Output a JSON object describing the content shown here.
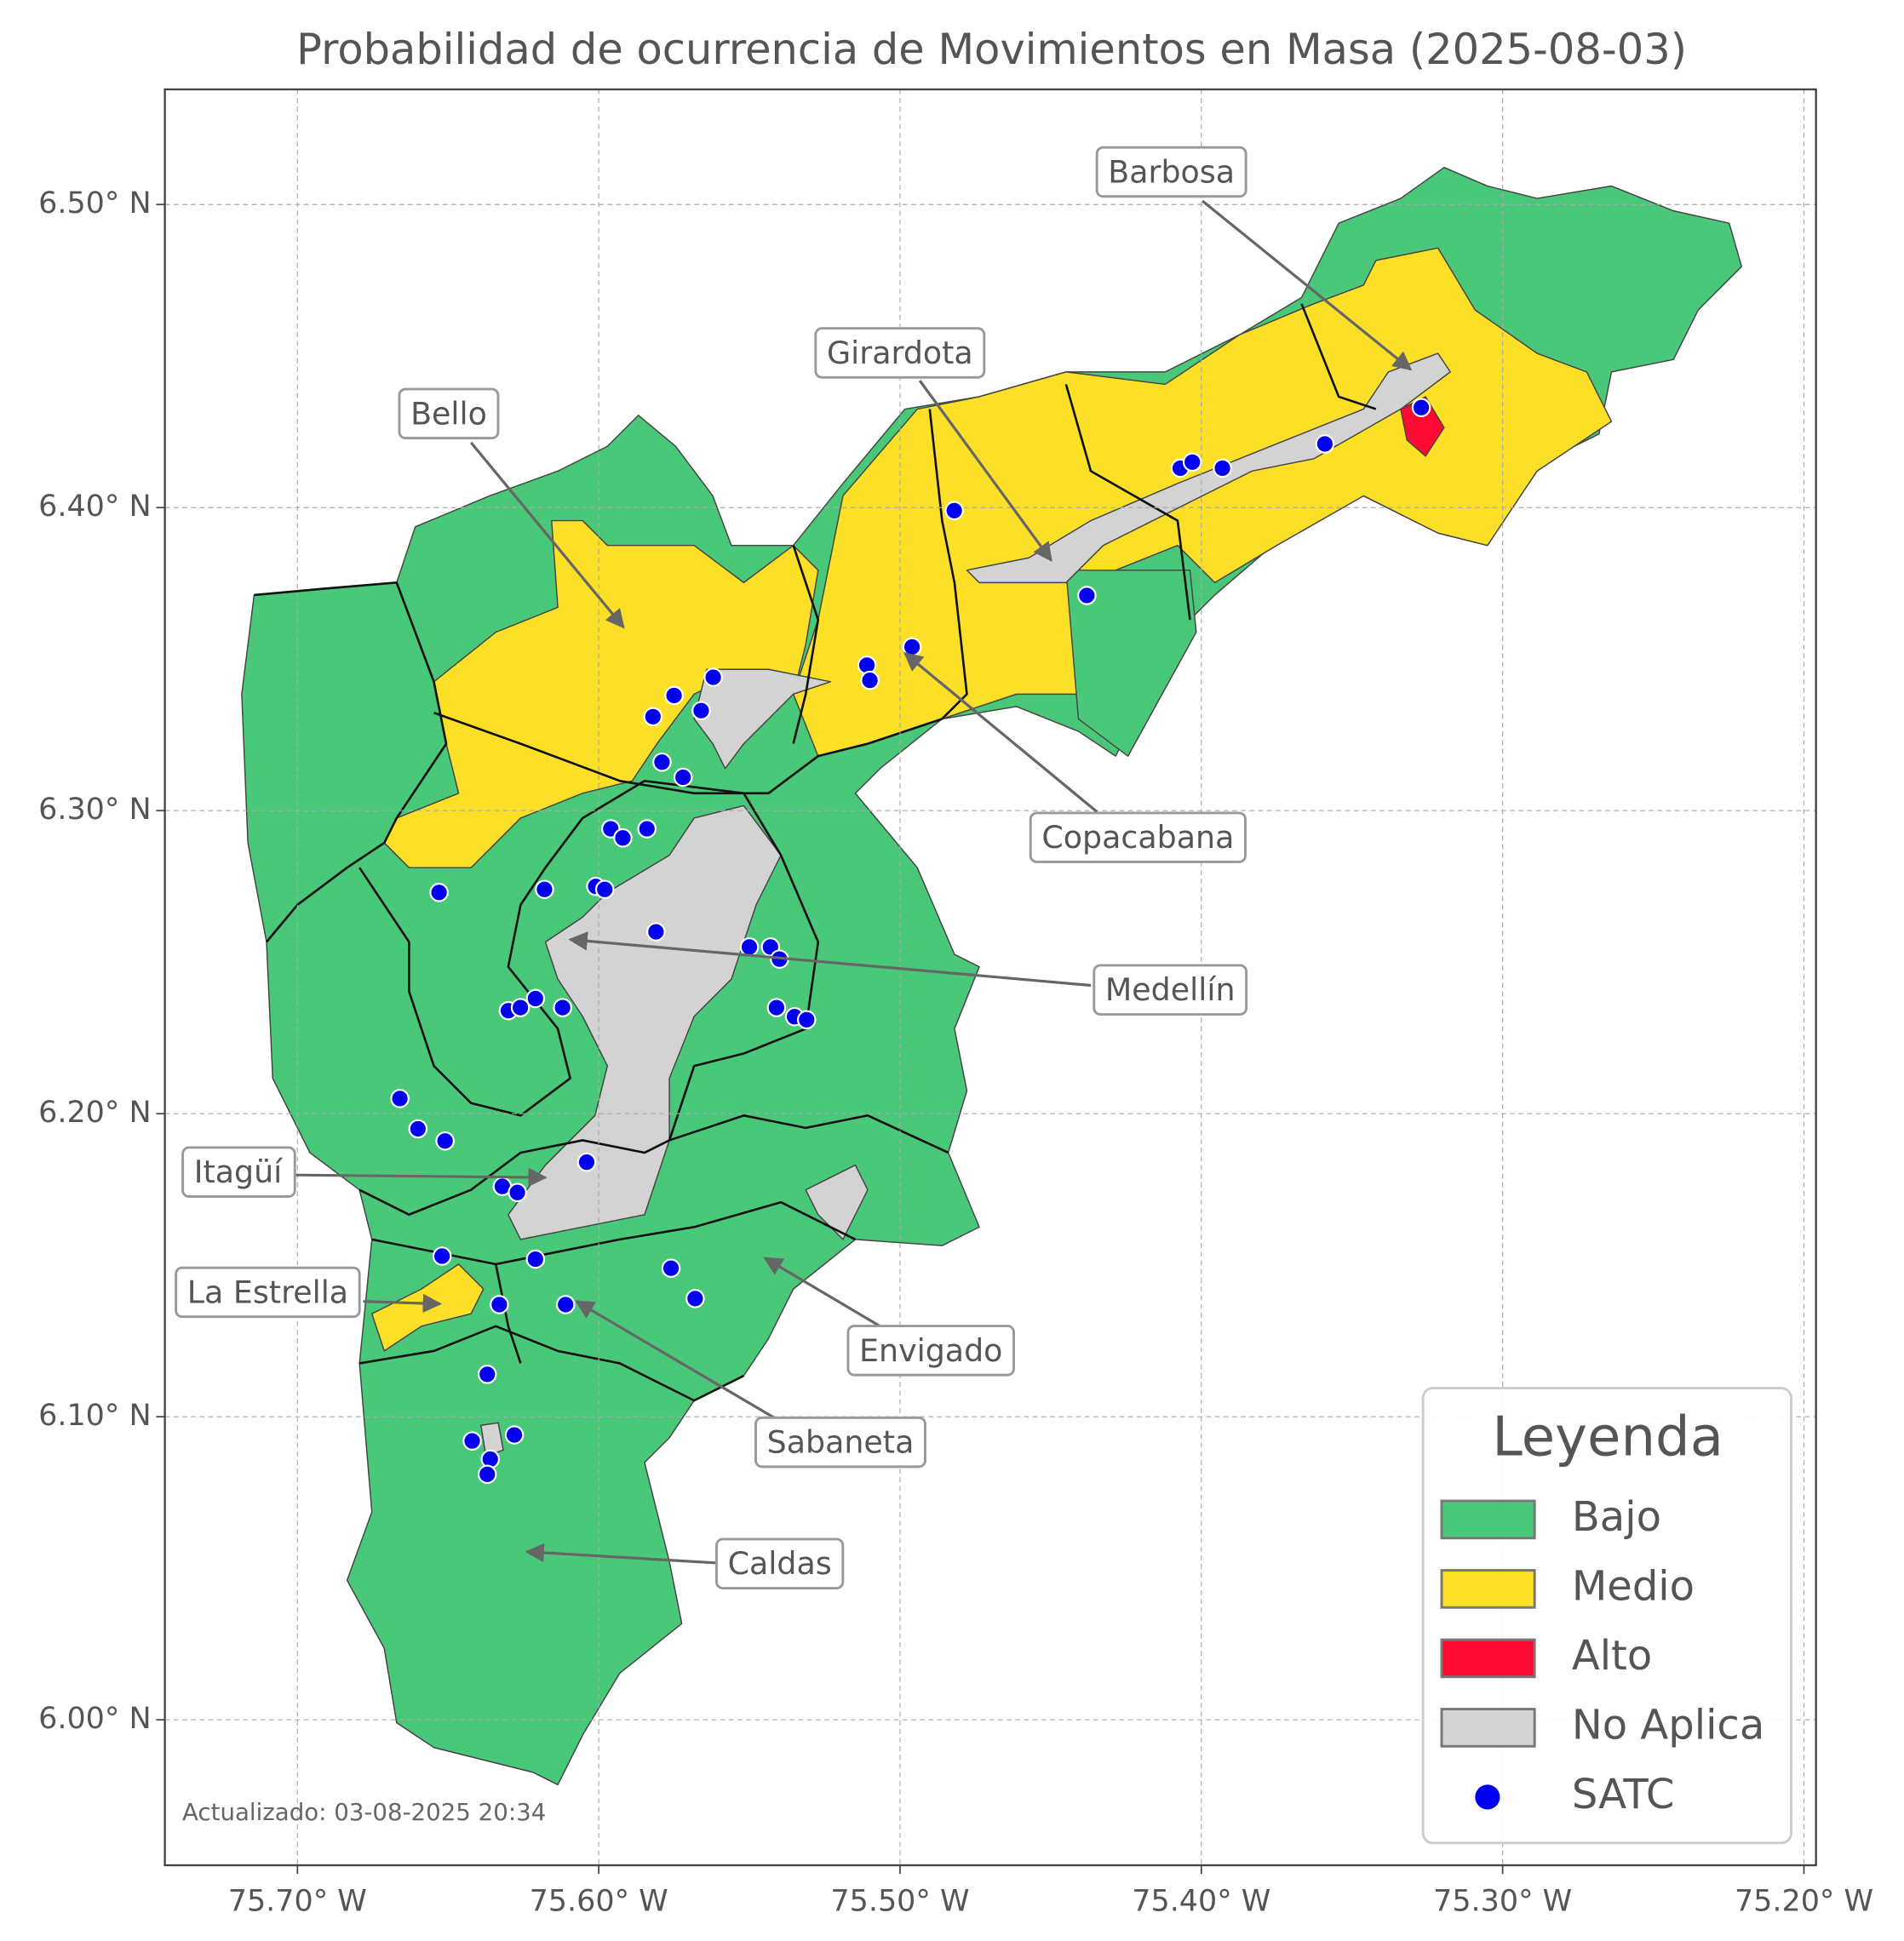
{
  "chart_data": {
    "type": "map",
    "title": "Probabilidad de ocurrencia de Movimientos en Masa (2025-08-03)",
    "xlim": [
      -75.744,
      -75.196
    ],
    "ylim": [
      5.952,
      6.538
    ],
    "xticks": [
      {
        "value": -75.7,
        "label": "75.70° W"
      },
      {
        "value": -75.6,
        "label": "75.60° W"
      },
      {
        "value": -75.5,
        "label": "75.50° W"
      },
      {
        "value": -75.4,
        "label": "75.40° W"
      },
      {
        "value": -75.3,
        "label": "75.30° W"
      },
      {
        "value": -75.2,
        "label": "75.20° W"
      }
    ],
    "yticks": [
      {
        "value": 6.0,
        "label": "6.00° N"
      },
      {
        "value": 6.1,
        "label": "6.10° N"
      },
      {
        "value": 6.2,
        "label": "6.20° N"
      },
      {
        "value": 6.3,
        "label": "6.30° N"
      },
      {
        "value": 6.4,
        "label": "6.40° N"
      },
      {
        "value": 6.5,
        "label": "6.50° N"
      }
    ],
    "grid": true,
    "legend": {
      "title": "Leyenda",
      "corner": "lower right",
      "entries": [
        {
          "name": "Bajo",
          "color": "#48c878"
        },
        {
          "name": "Medio",
          "color": "#fce028"
        },
        {
          "name": "Alto",
          "color": "#ff0a32"
        },
        {
          "name": "No Aplica",
          "color": "#d3d3d3"
        }
      ]
    },
    "points": {
      "name": "SATC",
      "color": "#0000ee",
      "lon": [
        -75.327,
        -75.359,
        -75.407,
        -75.403,
        -75.393,
        -75.482,
        -75.438,
        -75.496,
        -75.511,
        -75.51,
        -75.562,
        -75.575,
        -75.566,
        -75.582,
        -75.579,
        -75.572,
        -75.596,
        -75.592,
        -75.584,
        -75.653,
        -75.618,
        -75.601,
        -75.598,
        -75.581,
        -75.55,
        -75.543,
        -75.54,
        -75.541,
        -75.535,
        -75.531,
        -75.63,
        -75.626,
        -75.621,
        -75.612,
        -75.666,
        -75.66,
        -75.651,
        -75.604,
        -75.632,
        -75.627,
        -75.652,
        -75.621,
        -75.576,
        -75.568,
        -75.633,
        -75.611,
        -75.637,
        -75.642,
        -75.628,
        -75.636,
        -75.637
      ],
      "lat": [
        6.433,
        6.421,
        6.413,
        6.415,
        6.413,
        6.399,
        6.371,
        6.354,
        6.348,
        6.343,
        6.344,
        6.338,
        6.333,
        6.331,
        6.316,
        6.311,
        6.294,
        6.291,
        6.294,
        6.273,
        6.274,
        6.275,
        6.274,
        6.26,
        6.255,
        6.255,
        6.251,
        6.235,
        6.232,
        6.231,
        6.234,
        6.235,
        6.238,
        6.235,
        6.205,
        6.195,
        6.191,
        6.184,
        6.176,
        6.174,
        6.153,
        6.152,
        6.149,
        6.139,
        6.137,
        6.137,
        6.114,
        6.092,
        6.094,
        6.086,
        6.081
      ]
    },
    "annotations": [
      "Barbosa",
      "Girardota",
      "Bello",
      "Copacabana",
      "Medellín",
      "Itagüí",
      "La Estrella",
      "Envigado",
      "Sabaneta",
      "Caldas"
    ],
    "footnote": "Actualizado: 03-08-2025 20:34"
  }
}
